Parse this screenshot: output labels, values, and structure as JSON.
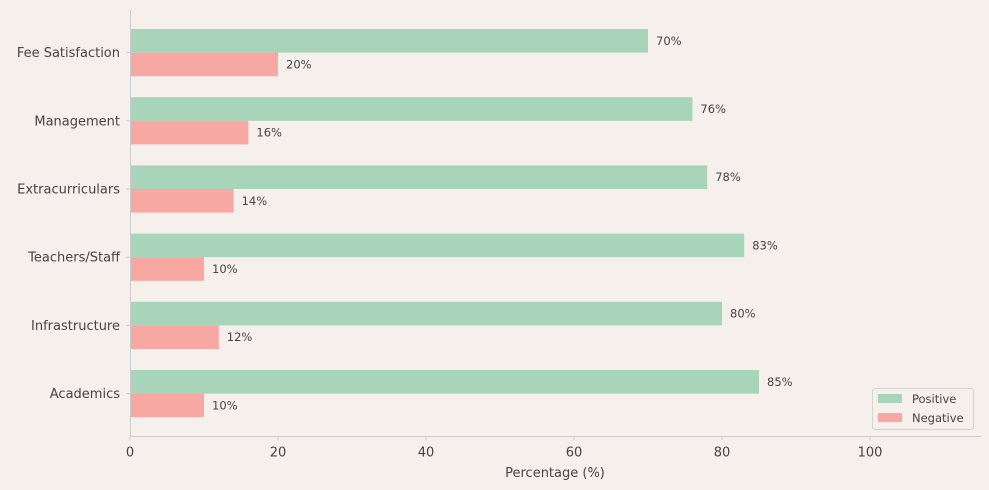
{
  "chart_data": {
    "type": "bar",
    "orientation": "horizontal",
    "categories": [
      "Fee Satisfaction",
      "Management",
      "Extracurriculars",
      "Teachers/Staff",
      "Infrastructure",
      "Academics"
    ],
    "series": [
      {
        "name": "Positive",
        "values": [
          70,
          76,
          78,
          83,
          80,
          85
        ],
        "color": "#a8d5ba"
      },
      {
        "name": "Negative",
        "values": [
          20,
          16,
          14,
          10,
          12,
          10
        ],
        "color": "#f7a8a3"
      }
    ],
    "data_label_suffix": "%",
    "xlabel": "Percentage (%)",
    "xlim": [
      0,
      115
    ],
    "xticks": [
      0,
      20,
      40,
      60,
      80,
      100
    ],
    "grid": false,
    "legend_position": "bottom-right",
    "colors": {
      "background": "#f5f0ec",
      "axis": "#cccccc",
      "text": "#444444"
    }
  }
}
